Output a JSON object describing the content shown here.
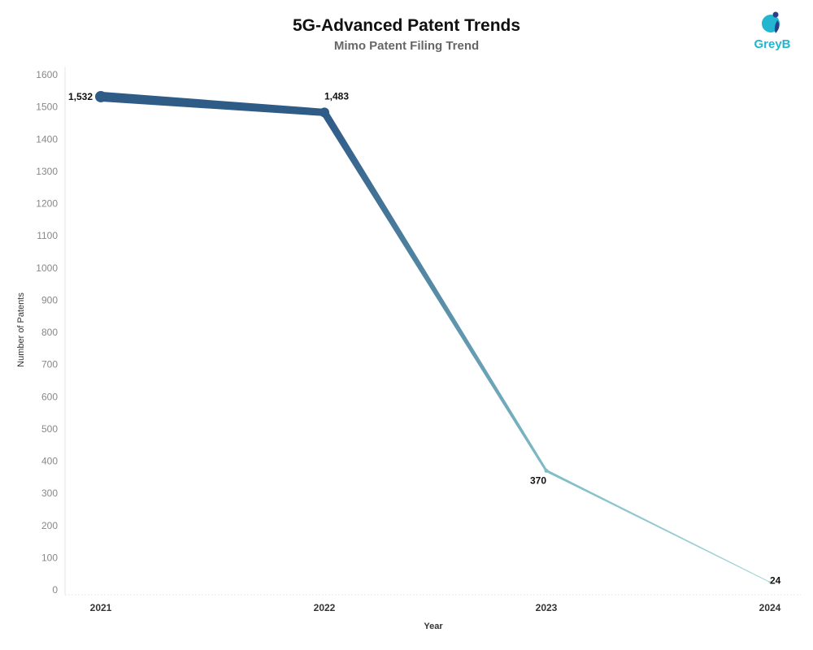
{
  "chart_data": {
    "type": "line",
    "title": "5G-Advanced Patent Trends",
    "subtitle": "Mimo Patent Filing Trend",
    "xlabel": "Year",
    "ylabel": "Number of Patents",
    "categories": [
      "2021",
      "2022",
      "2023",
      "2024"
    ],
    "values": [
      1532,
      1483,
      370,
      24
    ],
    "data_labels": [
      "1,532",
      "1,483",
      "370",
      "24"
    ],
    "ylim": [
      0,
      1600
    ],
    "yticks": [
      0,
      100,
      200,
      300,
      400,
      500,
      600,
      700,
      800,
      900,
      1000,
      1100,
      1200,
      1300,
      1400,
      1500,
      1600
    ],
    "grid": false,
    "colors": {
      "high": "#2f5b87",
      "mid": "#7fbcc6",
      "low": "#a9d8d9"
    }
  },
  "logo": {
    "text": "GreyB",
    "color": "#22b6d0",
    "accent": "#2a3f8c"
  }
}
